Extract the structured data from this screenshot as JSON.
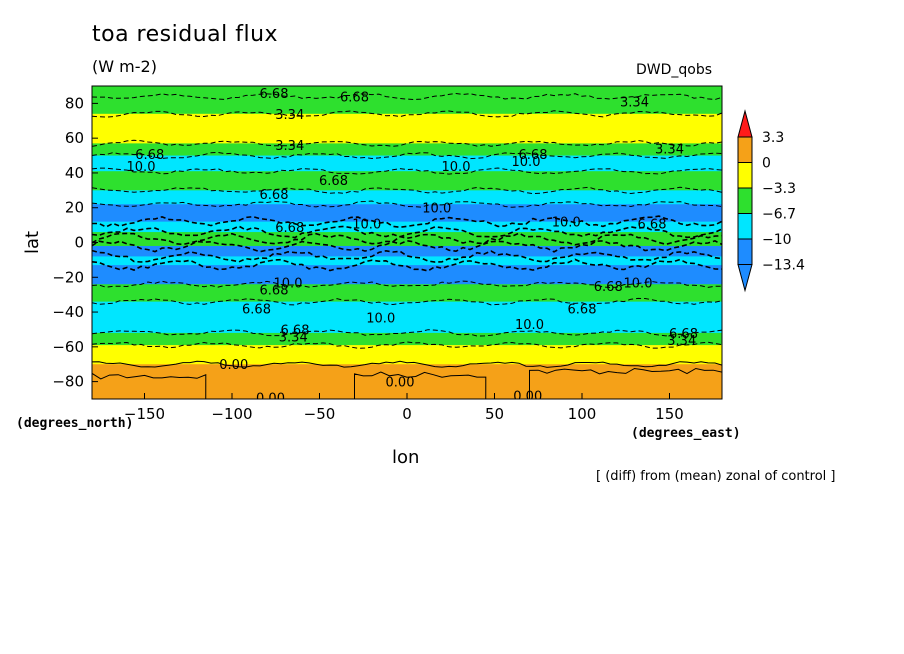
{
  "title": "toa residual flux",
  "units": "(W m-2)",
  "dataset": "DWD_qobs",
  "footnote": "[ (diff) from (mean) zonal of control ]",
  "colors": {
    "orange": "#f5a118",
    "yellow": "#ffff00",
    "green": "#2ee02e",
    "cyan": "#00e6ff",
    "blue": "#1e8cff",
    "red": "#ff1a1a"
  },
  "chart_data": {
    "type": "heatmap",
    "title": "toa residual flux",
    "subtitle": "(W m-2)",
    "xlabel": "lon",
    "ylabel": "lat",
    "x_unit": "(degrees_east)",
    "y_unit": "(degrees_north)",
    "xlim": [
      -180,
      180
    ],
    "ylim": [
      -90,
      90
    ],
    "x_ticks": [
      -150,
      -100,
      -50,
      0,
      50,
      100,
      150
    ],
    "y_ticks": [
      -80,
      -60,
      -40,
      -20,
      0,
      20,
      40,
      60,
      80
    ],
    "colorbar": {
      "labels": [
        "3.3",
        "0",
        "-3.3",
        "-6.7",
        "-10",
        "-13.4"
      ],
      "bins": [
        {
          "min": 3.3,
          "max": null,
          "color": "#ff1a1a"
        },
        {
          "min": 0,
          "max": 3.3,
          "color": "#f5a118"
        },
        {
          "min": -3.3,
          "max": 0,
          "color": "#ffff00"
        },
        {
          "min": -6.7,
          "max": -3.3,
          "color": "#2ee02e"
        },
        {
          "min": -10,
          "max": -6.7,
          "color": "#00e6ff"
        },
        {
          "min": -13.4,
          "max": -10,
          "color": "#1e8cff"
        },
        {
          "min": null,
          "max": -13.4,
          "color": "#1e8cff"
        }
      ]
    },
    "zonal_bands": [
      {
        "lat_from": 90,
        "lat_to": 84,
        "value": -5.0
      },
      {
        "lat_from": 84,
        "lat_to": 74,
        "value": -4.0
      },
      {
        "lat_from": 74,
        "lat_to": 57,
        "value": -2.0
      },
      {
        "lat_from": 57,
        "lat_to": 50,
        "value": -5.0
      },
      {
        "lat_from": 50,
        "lat_to": 41,
        "value": -8.5
      },
      {
        "lat_from": 41,
        "lat_to": 30,
        "value": -5.0
      },
      {
        "lat_from": 30,
        "lat_to": 22,
        "value": -8.0
      },
      {
        "lat_from": 22,
        "lat_to": 12,
        "value": -11.0
      },
      {
        "lat_from": 12,
        "lat_to": 6,
        "value": -8.0
      },
      {
        "lat_from": 6,
        "lat_to": 2,
        "value": -4.0
      },
      {
        "lat_from": 2,
        "lat_to": -2,
        "value": -5.0
      },
      {
        "lat_from": -2,
        "lat_to": -8,
        "value": -12.0
      },
      {
        "lat_from": -8,
        "lat_to": -13,
        "value": -8.0
      },
      {
        "lat_from": -13,
        "lat_to": -24,
        "value": -11.5
      },
      {
        "lat_from": -24,
        "lat_to": -34,
        "value": -5.0
      },
      {
        "lat_from": -34,
        "lat_to": -52,
        "value": -8.5
      },
      {
        "lat_from": -52,
        "lat_to": -59,
        "value": -5.0
      },
      {
        "lat_from": -59,
        "lat_to": -70,
        "value": -1.8
      },
      {
        "lat_from": -70,
        "lat_to": -90,
        "value": 1.5
      }
    ],
    "contour_labels": [
      {
        "text": "6.68",
        "lon": -76,
        "lat": 86
      },
      {
        "text": "6.68",
        "lon": -30,
        "lat": 84
      },
      {
        "text": "3.34",
        "lon": -67,
        "lat": 74
      },
      {
        "text": "3.34",
        "lon": 130,
        "lat": 81
      },
      {
        "text": "3.34",
        "lon": -67,
        "lat": 56
      },
      {
        "text": "3.34",
        "lon": 150,
        "lat": 54
      },
      {
        "text": "6.68",
        "lon": -147,
        "lat": 51
      },
      {
        "text": "10.0",
        "lon": -152,
        "lat": 44
      },
      {
        "text": "6.68",
        "lon": -42,
        "lat": 36
      },
      {
        "text": "10.0",
        "lon": 28,
        "lat": 44
      },
      {
        "text": "6.68",
        "lon": 72,
        "lat": 51
      },
      {
        "text": "10.0",
        "lon": 68,
        "lat": 47
      },
      {
        "text": "6.68",
        "lon": -76,
        "lat": 28
      },
      {
        "text": "10.0",
        "lon": 17,
        "lat": 20
      },
      {
        "text": "10.0",
        "lon": -23,
        "lat": 11
      },
      {
        "text": "10.0",
        "lon": 91,
        "lat": 12
      },
      {
        "text": "6.68",
        "lon": 140,
        "lat": 11
      },
      {
        "text": "6.68",
        "lon": -67,
        "lat": 9
      },
      {
        "text": "6.68",
        "lon": -76,
        "lat": -27
      },
      {
        "text": "10.0",
        "lon": -68,
        "lat": -23
      },
      {
        "text": "6.68",
        "lon": 115,
        "lat": -25
      },
      {
        "text": "10.0",
        "lon": 132,
        "lat": -23
      },
      {
        "text": "6.68",
        "lon": -86,
        "lat": -38
      },
      {
        "text": "10.0",
        "lon": -15,
        "lat": -43
      },
      {
        "text": "10.0",
        "lon": 70,
        "lat": -47
      },
      {
        "text": "6.68",
        "lon": 100,
        "lat": -38
      },
      {
        "text": "6.68",
        "lon": -64,
        "lat": -50
      },
      {
        "text": "3.34",
        "lon": -65,
        "lat": -54
      },
      {
        "text": "6.68",
        "lon": 158,
        "lat": -52
      },
      {
        "text": "3.34",
        "lon": 157,
        "lat": -56
      },
      {
        "text": "0.00",
        "lon": -99,
        "lat": -70
      },
      {
        "text": "0.00",
        "lon": -4,
        "lat": -80
      },
      {
        "text": "0.00",
        "lon": 69,
        "lat": -88
      },
      {
        "text": "0.00",
        "lon": -78,
        "lat": -89
      }
    ]
  }
}
